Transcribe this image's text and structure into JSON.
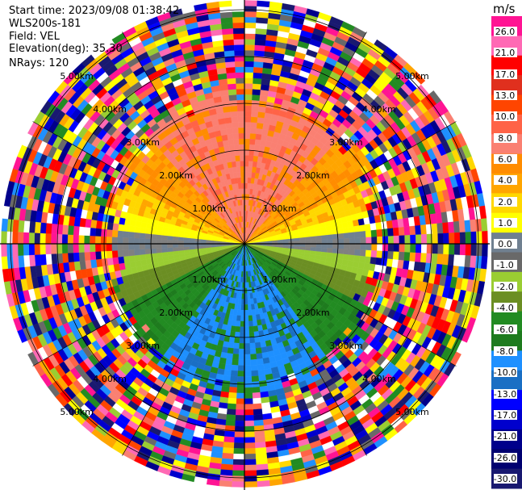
{
  "header": {
    "start_time": "Start time: 2023/09/08 01:38:42",
    "instrument": "WLS200s-181",
    "field": "Field: VEL",
    "elevation": "Elevation(deg): 35.30",
    "nrays": "NRays: 120"
  },
  "chart_data": {
    "type": "heatmap",
    "projection": "polar-ppi",
    "field": "VEL",
    "units": "m/s",
    "nrays": 120,
    "elevation_deg": 35.3,
    "max_range_km": 5.2,
    "range_ring_labels": [
      "1.00km",
      "2.00km",
      "3.00km",
      "4.00km",
      "5.00km"
    ],
    "range_ring_values_km": [
      1,
      2,
      3,
      4,
      5
    ],
    "colorbar": {
      "unit_label": "m/s",
      "tick_labels": [
        "26.0",
        "21.0",
        "17.0",
        "13.0",
        "10.0",
        "8.0",
        "6.0",
        "4.0",
        "2.0",
        "1.0",
        "0.0",
        "-1.0",
        "-2.0",
        "-4.0",
        "-6.0",
        "-8.0",
        "-10.0",
        "-13.0",
        "-17.0",
        "-21.0",
        "-26.0",
        "-30.0"
      ],
      "colors": [
        "#ff1493",
        "#ff69b4",
        "#ff0000",
        "#e0301e",
        "#ff4500",
        "#ff6347",
        "#fa8072",
        "#ff8c00",
        "#ffa500",
        "#ffd700",
        "#ffff00",
        "#708090",
        "#696969",
        "#9acd32",
        "#6b8e23",
        "#228b22",
        "#1e7b1e",
        "#1e90ff",
        "#1a6fc4",
        "#0000ff",
        "#0000cd",
        "#00008b",
        "#000070",
        "#191970"
      ]
    },
    "velocity_pattern": {
      "north_sector": "positive, mostly 6 to 10 m/s",
      "south_sector": "negative, mostly -6 to -10 m/s",
      "east_west": "near zero",
      "clean_data_extent_km": 2.7,
      "beyond": "noise"
    }
  }
}
